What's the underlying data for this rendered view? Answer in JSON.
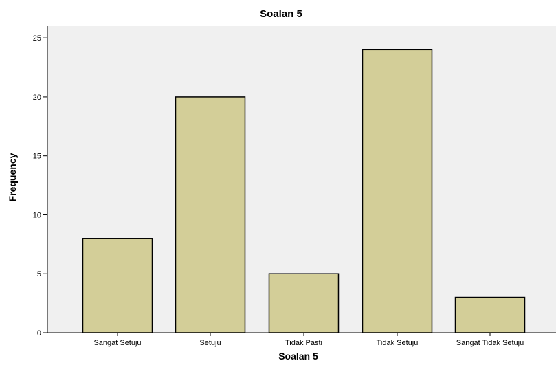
{
  "colors": {
    "plot_background": "#f0f0f0",
    "bar_fill": "#d3ce98",
    "bar_stroke": "#000000",
    "axis": "#000000"
  },
  "chart_data": {
    "type": "bar",
    "title": "Soalan 5",
    "xlabel": "Soalan 5",
    "ylabel": "Frequency",
    "categories": [
      "Sangat Setuju",
      "Setuju",
      "Tidak Pasti",
      "Tidak Setuju",
      "Sangat Tidak Setuju"
    ],
    "values": [
      8,
      20,
      5,
      24,
      3
    ],
    "ylim": [
      0,
      26
    ],
    "yticks": [
      0,
      5,
      10,
      15,
      20,
      25
    ],
    "grid": false,
    "legend": "none"
  }
}
